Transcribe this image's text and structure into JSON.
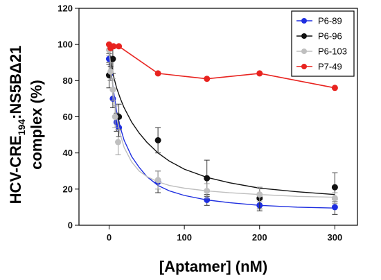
{
  "chart_data": {
    "type": "scatter",
    "xlabel": "[Aptamer] (nM)",
    "ylabel": {
      "line1_main": "HCV-CRE",
      "line1_sub": "194",
      "line1_rest": ":NS5BΔ21",
      "line2": "complex (%)"
    },
    "xlim": [
      -40,
      330
    ],
    "ylim": [
      0,
      120
    ],
    "xticks": [
      0,
      100,
      200,
      300
    ],
    "yticks": [
      0,
      20,
      40,
      60,
      80,
      100,
      120
    ],
    "xtick_labels": [
      "0",
      "100",
      "200",
      "300"
    ],
    "ytick_labels": [
      "0",
      "20",
      "40",
      "60",
      "80",
      "100",
      "120"
    ],
    "legend_position": "top-right",
    "grid": false,
    "series": [
      {
        "name": "P6-89",
        "color": "#1f2fe0",
        "fit": true,
        "points": [
          {
            "x": 0,
            "y": 92,
            "err": 3
          },
          {
            "x": 2,
            "y": 84,
            "err": 4
          },
          {
            "x": 5,
            "y": 70,
            "err": 5
          },
          {
            "x": 10,
            "y": 57,
            "err": 5
          },
          {
            "x": 13,
            "y": 54,
            "err": 5
          },
          {
            "x": 65,
            "y": 24,
            "err": 6
          },
          {
            "x": 130,
            "y": 14,
            "err": 3
          },
          {
            "x": 200,
            "y": 11,
            "err": 3
          },
          {
            "x": 300,
            "y": 10,
            "err": 4
          }
        ],
        "fit_curve": [
          [
            0,
            95
          ],
          [
            3,
            84
          ],
          [
            6,
            74
          ],
          [
            10,
            63
          ],
          [
            15,
            54
          ],
          [
            20,
            47
          ],
          [
            30,
            38
          ],
          [
            40,
            32
          ],
          [
            50,
            27
          ],
          [
            65,
            22
          ],
          [
            80,
            19
          ],
          [
            100,
            16.5
          ],
          [
            130,
            14
          ],
          [
            160,
            12.5
          ],
          [
            200,
            11
          ],
          [
            250,
            10
          ],
          [
            300,
            9.5
          ]
        ]
      },
      {
        "name": "P6-96",
        "color": "#111111",
        "fit": true,
        "points": [
          {
            "x": 0,
            "y": 83,
            "err": 7
          },
          {
            "x": 5,
            "y": 92,
            "err": 8
          },
          {
            "x": 13,
            "y": 60,
            "err": 7
          },
          {
            "x": 65,
            "y": 47,
            "err": 7
          },
          {
            "x": 130,
            "y": 26,
            "err": 10
          },
          {
            "x": 200,
            "y": 15,
            "err": 6
          },
          {
            "x": 300,
            "y": 21,
            "err": 8
          }
        ],
        "fit_curve": [
          [
            0,
            97
          ],
          [
            5,
            84
          ],
          [
            10,
            76
          ],
          [
            15,
            70
          ],
          [
            20,
            65
          ],
          [
            30,
            57
          ],
          [
            40,
            51
          ],
          [
            50,
            46
          ],
          [
            65,
            40
          ],
          [
            80,
            35.5
          ],
          [
            100,
            31
          ],
          [
            130,
            26.5
          ],
          [
            160,
            23.5
          ],
          [
            200,
            20.5
          ],
          [
            250,
            18.5
          ],
          [
            300,
            17
          ]
        ]
      },
      {
        "name": "P6-103",
        "color": "#bfbfbf",
        "fit": true,
        "points": [
          {
            "x": 0,
            "y": 97,
            "err": 3
          },
          {
            "x": 2,
            "y": 85,
            "err": 5
          },
          {
            "x": 5,
            "y": 75,
            "err": 6
          },
          {
            "x": 8,
            "y": 60,
            "err": 6
          },
          {
            "x": 12,
            "y": 46,
            "err": 7
          },
          {
            "x": 65,
            "y": 25,
            "err": 5
          },
          {
            "x": 130,
            "y": 19,
            "err": 4
          },
          {
            "x": 200,
            "y": 17,
            "err": 4
          },
          {
            "x": 300,
            "y": 15,
            "err": 3
          }
        ],
        "fit_curve": [
          [
            0,
            97
          ],
          [
            3,
            85
          ],
          [
            6,
            72
          ],
          [
            10,
            60
          ],
          [
            15,
            50
          ],
          [
            20,
            43
          ],
          [
            30,
            35
          ],
          [
            40,
            30
          ],
          [
            50,
            27
          ],
          [
            65,
            24
          ],
          [
            80,
            22
          ],
          [
            100,
            20.5
          ],
          [
            130,
            19
          ],
          [
            160,
            18
          ],
          [
            200,
            17
          ],
          [
            250,
            16
          ],
          [
            300,
            15.5
          ]
        ]
      },
      {
        "name": "P7-49",
        "color": "#e8231f",
        "fit": false,
        "connect": true,
        "points": [
          {
            "x": 0,
            "y": 100
          },
          {
            "x": 2,
            "y": 98
          },
          {
            "x": 6,
            "y": 99
          },
          {
            "x": 13,
            "y": 99
          },
          {
            "x": 65,
            "y": 84
          },
          {
            "x": 130,
            "y": 81
          },
          {
            "x": 200,
            "y": 84
          },
          {
            "x": 300,
            "y": 76
          }
        ]
      }
    ]
  }
}
